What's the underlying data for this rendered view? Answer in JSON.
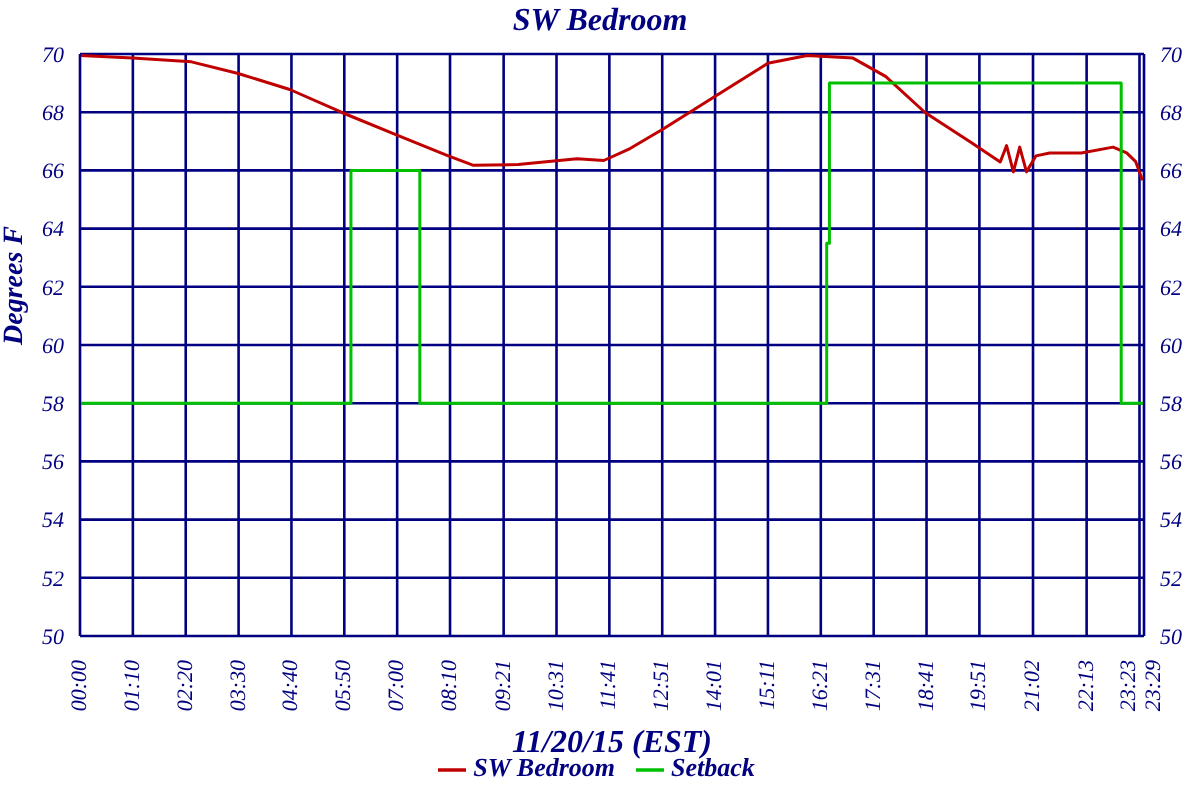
{
  "chart_data": {
    "type": "line",
    "title": "SW Bedroom",
    "xlabel": "11/20/15 (EST)",
    "ylabel": "Degrees F",
    "xlim": [
      0,
      23.483
    ],
    "xticks": [
      {
        "value": 0,
        "label": "00:00"
      },
      {
        "value": 1.1667,
        "label": "01:10"
      },
      {
        "value": 2.3333,
        "label": "02:20"
      },
      {
        "value": 3.5,
        "label": "03:30"
      },
      {
        "value": 4.6667,
        "label": "04:40"
      },
      {
        "value": 5.8333,
        "label": "05:50"
      },
      {
        "value": 7,
        "label": "07:00"
      },
      {
        "value": 8.1667,
        "label": "08:10"
      },
      {
        "value": 9.35,
        "label": "09:21"
      },
      {
        "value": 10.5167,
        "label": "10:31"
      },
      {
        "value": 11.6833,
        "label": "11:41"
      },
      {
        "value": 12.85,
        "label": "12:51"
      },
      {
        "value": 14.0167,
        "label": "14:01"
      },
      {
        "value": 15.1833,
        "label": "15:11"
      },
      {
        "value": 16.35,
        "label": "16:21"
      },
      {
        "value": 17.5167,
        "label": "17:31"
      },
      {
        "value": 18.6833,
        "label": "18:41"
      },
      {
        "value": 19.85,
        "label": "19:51"
      },
      {
        "value": 21.0333,
        "label": "21:02"
      },
      {
        "value": 22.2167,
        "label": "22:13"
      },
      {
        "value": 23.3833,
        "label": "23:23"
      },
      {
        "value": 23.483,
        "label": "23:29"
      }
    ],
    "ylim": [
      50,
      70
    ],
    "yticks": [
      50,
      52,
      54,
      56,
      58,
      60,
      62,
      64,
      66,
      68,
      70
    ],
    "y2lim": [
      50,
      70
    ],
    "y2ticks": [
      50,
      52,
      54,
      56,
      58,
      60,
      62,
      64,
      66,
      68,
      70
    ],
    "grid": true,
    "legend": "bottom",
    "marker": "none",
    "line_style": "solid",
    "series": [
      {
        "name": "SW Bedroom",
        "color": "#c00000",
        "x": [
          0,
          1.16,
          2.46,
          3.47,
          4.63,
          5.78,
          7.01,
          8.1,
          8.67,
          9.67,
          10.97,
          11.56,
          12.14,
          12.87,
          14.02,
          15.18,
          16.05,
          17.06,
          17.78,
          18.65,
          19.66,
          20.31,
          20.45,
          20.6,
          20.74,
          20.89,
          21.1,
          21.4,
          22.1,
          22.8,
          23.1,
          23.3,
          23.45
        ],
        "values": [
          69.95,
          69.86,
          69.73,
          69.34,
          68.78,
          67.99,
          67.2,
          66.52,
          66.18,
          66.2,
          66.4,
          66.34,
          66.75,
          67.42,
          68.55,
          69.68,
          69.95,
          69.86,
          69.23,
          67.99,
          66.97,
          66.29,
          66.85,
          65.95,
          66.8,
          65.95,
          66.5,
          66.6,
          66.6,
          66.8,
          66.6,
          66.3,
          65.66
        ]
      },
      {
        "name": "Setback",
        "type": "step",
        "color": "#00c000",
        "x": [
          0,
          5.98,
          7.5,
          16.48,
          16.54,
          22.98,
          23.48
        ],
        "values": [
          58,
          66,
          58,
          63.5,
          69,
          58,
          58
        ]
      }
    ]
  }
}
